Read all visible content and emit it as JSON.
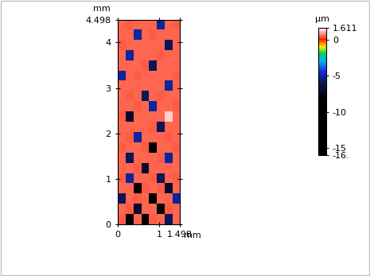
{
  "chart_data": {
    "type": "heatmap",
    "xlabel": "mm",
    "ylabel": "mm",
    "xlim": [
      0,
      1.498
    ],
    "xticks": [
      0,
      1,
      1.498
    ],
    "ylim": [
      0,
      4.498
    ],
    "yticks": [
      0,
      1,
      2,
      3,
      4,
      4.498
    ],
    "cells": [
      [
        0.4,
        -12,
        0.5,
        -8,
        0.4,
        0.5,
        -6,
        0.5
      ],
      [
        0.5,
        0.4,
        -7,
        0.5,
        0.5,
        -9,
        0.4,
        0.5
      ],
      [
        -6,
        0.5,
        0.4,
        0.5,
        -10,
        0.5,
        0.5,
        -5
      ],
      [
        0.5,
        0.5,
        -8,
        0.4,
        0.5,
        0.4,
        -7,
        0.5
      ],
      [
        0.4,
        -5,
        0.5,
        0.5,
        0.4,
        -6,
        0.5,
        0.4
      ],
      [
        0.5,
        0.5,
        0.4,
        -7,
        0.5,
        0.5,
        0.5,
        0.5
      ],
      [
        0.5,
        -6,
        0.5,
        0.5,
        0.5,
        0.4,
        -5,
        0.5
      ],
      [
        0.4,
        0.5,
        0.5,
        0.4,
        -8,
        0.5,
        0.5,
        0.4
      ],
      [
        0.5,
        0.4,
        -5,
        0.5,
        0.5,
        0.5,
        0.4,
        0.5
      ],
      [
        0.5,
        0.5,
        0.5,
        0.5,
        0.4,
        -6,
        0.5,
        0.5
      ],
      [
        0.4,
        -7,
        0.5,
        0.5,
        0.5,
        0.5,
        1.2,
        0.5
      ],
      [
        0.5,
        0.5,
        0.4,
        0.5,
        -5,
        0.5,
        0.5,
        0.4
      ],
      [
        0.5,
        0.4,
        0.5,
        -6,
        0.5,
        0.4,
        0.5,
        0.5
      ],
      [
        0.5,
        0.5,
        0.5,
        0.5,
        0.5,
        0.5,
        -5,
        0.5
      ],
      [
        -5,
        0.5,
        0.4,
        0.5,
        0.5,
        0.5,
        0.5,
        0.4
      ],
      [
        0.5,
        0.5,
        0.5,
        0.4,
        -6,
        0.5,
        0.5,
        0.5
      ],
      [
        0.5,
        -5,
        0.5,
        0.5,
        0.5,
        0.4,
        0.5,
        0.5
      ],
      [
        0.4,
        0.5,
        0.5,
        0.5,
        0.5,
        0.5,
        -6,
        0.5
      ],
      [
        0.5,
        0.5,
        -5,
        0.5,
        0.4,
        0.5,
        0.5,
        0.5
      ],
      [
        0.5,
        0.4,
        0.5,
        0.5,
        0.5,
        -5,
        0.5,
        0.4
      ]
    ],
    "colorbar": {
      "label": "µm",
      "lim": [
        -16,
        1.611
      ],
      "ticks": [
        1.611,
        0,
        -5,
        -10,
        -15,
        {
          "value": -16,
          "label": "-16."
        }
      ]
    }
  }
}
